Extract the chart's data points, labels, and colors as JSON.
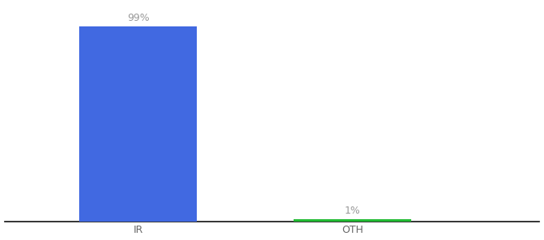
{
  "categories": [
    "IR",
    "OTH"
  ],
  "values": [
    99,
    1
  ],
  "bar_colors": [
    "#4169e1",
    "#22bb33"
  ],
  "value_labels": [
    "99%",
    "1%"
  ],
  "background_color": "#ffffff",
  "ylim": [
    0,
    110
  ],
  "xlim": [
    0,
    10
  ],
  "bar_positions": [
    2.5,
    6.5
  ],
  "bar_width": 2.2,
  "label_fontsize": 9,
  "tick_fontsize": 9,
  "label_color": "#999999",
  "tick_color": "#666666"
}
